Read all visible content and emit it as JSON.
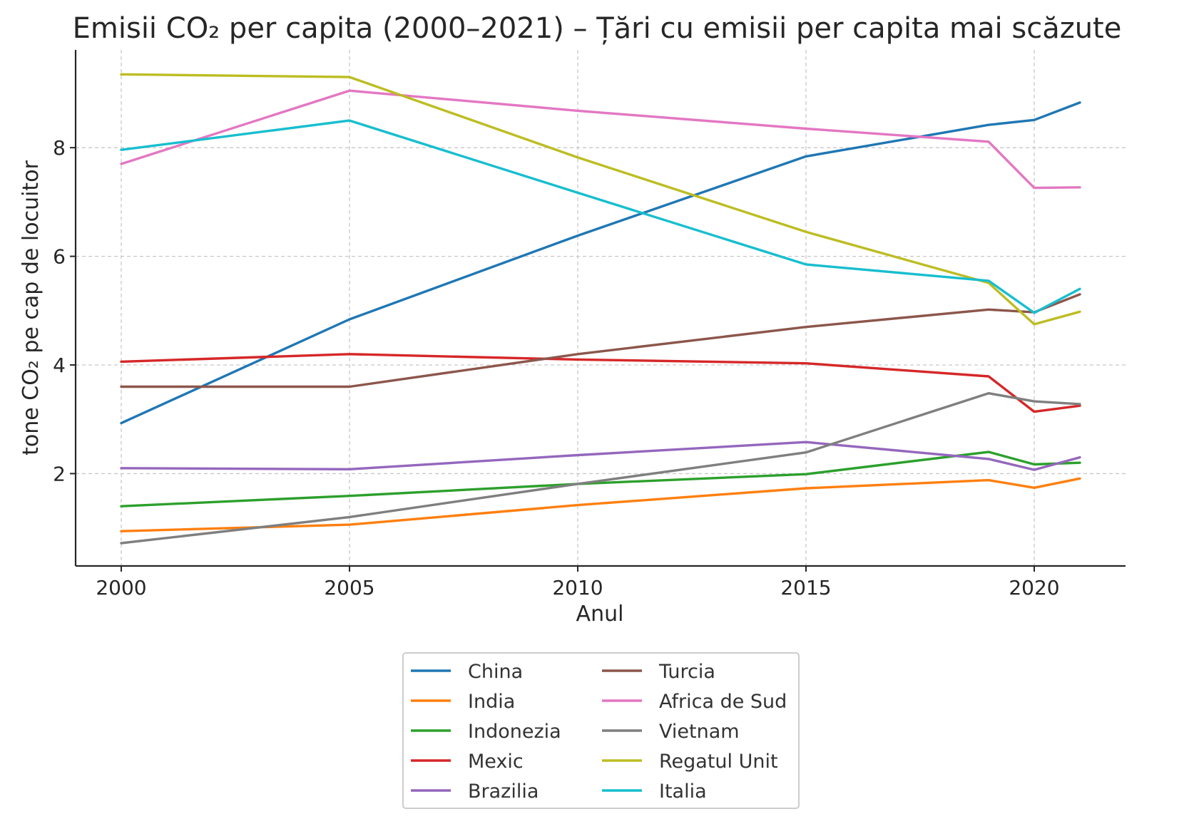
{
  "chart_data": {
    "type": "line",
    "title": "Emisii CO₂ per capita (2000–2021) – Țări cu emisii per capita mai scăzute",
    "xlabel": "Anul",
    "ylabel": "tone CO₂ pe cap de locuitor",
    "xlim": [
      1999,
      2022
    ],
    "ylim": [
      0.3,
      9.8
    ],
    "xticks": [
      2000,
      2005,
      2010,
      2015,
      2020
    ],
    "yticks": [
      2,
      4,
      6,
      8
    ],
    "grid": true,
    "legend_position": "bottom-center",
    "x": [
      2000,
      2005,
      2010,
      2015,
      2019,
      2020,
      2021
    ],
    "series": [
      {
        "name": "China",
        "color": "#1f77b4",
        "values": [
          2.93,
          4.84,
          6.38,
          7.84,
          8.42,
          8.51,
          8.83
        ]
      },
      {
        "name": "India",
        "color": "#ff7f0e",
        "values": [
          0.94,
          1.06,
          1.42,
          1.73,
          1.88,
          1.74,
          1.91
        ]
      },
      {
        "name": "Indonezia",
        "color": "#2ca02c",
        "values": [
          1.4,
          1.59,
          1.81,
          1.99,
          2.4,
          2.17,
          2.2
        ]
      },
      {
        "name": "Mexic",
        "color": "#d62728",
        "values": [
          4.06,
          4.2,
          4.1,
          4.03,
          3.79,
          3.14,
          3.25
        ]
      },
      {
        "name": "Brazilia",
        "color": "#9467bd",
        "values": [
          2.1,
          2.08,
          2.34,
          2.58,
          2.27,
          2.07,
          2.3
        ]
      },
      {
        "name": "Turcia",
        "color": "#8c564b",
        "values": [
          3.6,
          3.6,
          4.2,
          4.7,
          5.02,
          4.97,
          5.3
        ]
      },
      {
        "name": "Africa de Sud",
        "color": "#e377c2",
        "values": [
          7.7,
          9.05,
          8.68,
          8.35,
          8.11,
          7.26,
          7.27
        ]
      },
      {
        "name": "Vietnam",
        "color": "#7f7f7f",
        "values": [
          0.72,
          1.2,
          1.81,
          2.39,
          3.48,
          3.33,
          3.28
        ]
      },
      {
        "name": "Regatul Unit",
        "color": "#bcbd22",
        "values": [
          9.35,
          9.3,
          7.82,
          6.45,
          5.51,
          4.75,
          4.98
        ]
      },
      {
        "name": "Italia",
        "color": "#17becf",
        "values": [
          7.96,
          8.5,
          7.17,
          5.85,
          5.55,
          4.96,
          5.4
        ]
      }
    ]
  }
}
